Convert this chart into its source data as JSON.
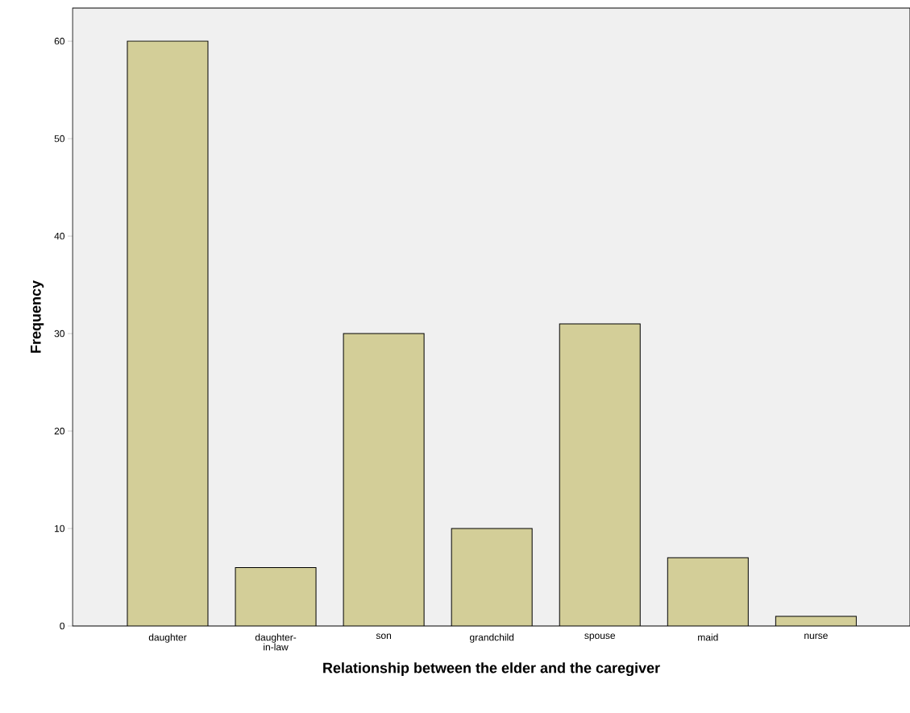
{
  "chart_data": {
    "type": "bar",
    "xlabel": "Relationship between the elder and the caregiver",
    "ylabel": "Frequency",
    "categories": [
      "daughter",
      "daughter-in-law",
      "son",
      "grandchild",
      "spouse",
      "maid",
      "nurse"
    ],
    "values": [
      60,
      6,
      30,
      10,
      31,
      7,
      1
    ],
    "color": "#d3ce98",
    "ylim": [
      0,
      63.4
    ],
    "yticks": [
      0,
      10,
      20,
      30,
      40,
      50,
      60
    ],
    "grid": false
  }
}
